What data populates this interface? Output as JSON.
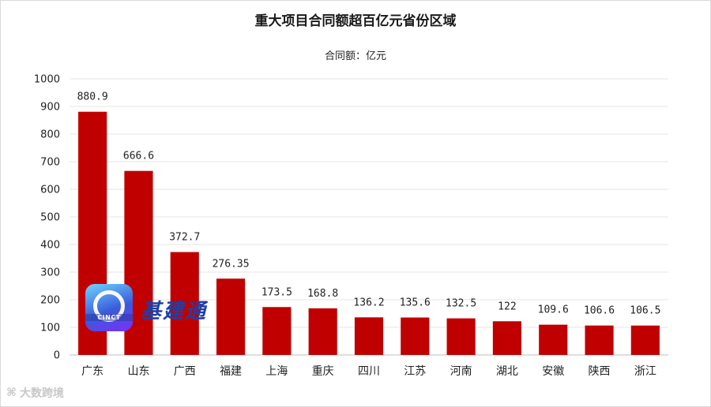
{
  "chart_data": {
    "type": "bar",
    "title": "重大项目合同额超百亿元省份区域",
    "subtitle": "合同额：亿元",
    "categories": [
      "广东",
      "山东",
      "广西",
      "福建",
      "上海",
      "重庆",
      "四川",
      "江苏",
      "河南",
      "湖北",
      "安徽",
      "陕西",
      "浙江"
    ],
    "values": [
      880.9,
      666.6,
      372.7,
      276.35,
      173.5,
      168.8,
      136.2,
      135.6,
      132.5,
      122,
      109.6,
      106.6,
      106.5
    ],
    "value_labels": [
      "880.9",
      "666.6",
      "372.7",
      "276.35",
      "173.5",
      "168.8",
      "136.2",
      "135.6",
      "132.5",
      "122",
      "109.6",
      "106.6",
      "106.5"
    ],
    "yticks": [
      0,
      100,
      200,
      300,
      400,
      500,
      600,
      700,
      800,
      900,
      1000
    ],
    "ylim": [
      0,
      1000
    ],
    "grid": true,
    "bar_color": "#c00000"
  },
  "overlay": {
    "logo_text": "CINCT",
    "brand_text": "基建通",
    "watermark_text": "大数跨境"
  }
}
